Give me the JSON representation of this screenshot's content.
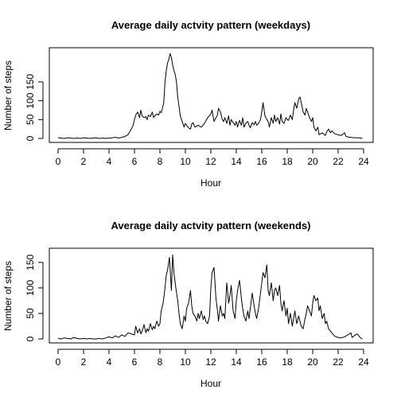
{
  "chart_data": [
    {
      "type": "line",
      "title": "Average daily actvity pattern (weekdays)",
      "xlabel": "Hour",
      "ylabel": "Number of steps",
      "xlim": [
        0,
        24
      ],
      "ylim": [
        0,
        230
      ],
      "x_ticks": [
        0,
        2,
        4,
        6,
        8,
        10,
        12,
        14,
        16,
        18,
        20,
        22,
        24
      ],
      "y_ticks": [
        0,
        50,
        100,
        150
      ],
      "grid": false,
      "series": [
        {
          "x": [
            0,
            0.25,
            0.5,
            0.75,
            1.0,
            1.25,
            1.5,
            1.75,
            2.0,
            2.25,
            2.5,
            2.75,
            3.0,
            3.25,
            3.5,
            3.75,
            4.0,
            4.25,
            4.5,
            4.75,
            5.0,
            5.25,
            5.5,
            5.75,
            5.9,
            6.0,
            6.1,
            6.25,
            6.4,
            6.5,
            6.6,
            6.75,
            6.9,
            7.0,
            7.1,
            7.25,
            7.4,
            7.5,
            7.6,
            7.75,
            7.9,
            8.0,
            8.1,
            8.2,
            8.3,
            8.4,
            8.5,
            8.6,
            8.7,
            8.8,
            8.9,
            9.0,
            9.1,
            9.2,
            9.3,
            9.4,
            9.5,
            9.6,
            9.75,
            9.9,
            10.0,
            10.1,
            10.25,
            10.4,
            10.5,
            10.6,
            10.75,
            11.0,
            11.25,
            11.5,
            11.75,
            12.0,
            12.1,
            12.25,
            12.4,
            12.5,
            12.6,
            12.75,
            12.9,
            13.0,
            13.1,
            13.25,
            13.4,
            13.5,
            13.6,
            13.75,
            13.9,
            14.0,
            14.1,
            14.25,
            14.4,
            14.5,
            14.6,
            14.75,
            14.9,
            15.0,
            15.1,
            15.25,
            15.4,
            15.5,
            15.6,
            15.75,
            15.9,
            16.0,
            16.1,
            16.25,
            16.4,
            16.5,
            16.6,
            16.75,
            16.9,
            17.0,
            17.1,
            17.25,
            17.4,
            17.5,
            17.6,
            17.75,
            17.9,
            18.0,
            18.1,
            18.25,
            18.4,
            18.5,
            18.6,
            18.75,
            18.9,
            19.0,
            19.1,
            19.25,
            19.4,
            19.5,
            19.6,
            19.75,
            19.9,
            20.0,
            20.1,
            20.25,
            20.4,
            20.5,
            20.75,
            21.0,
            21.1,
            21.25,
            21.4,
            21.5,
            21.75,
            22.0,
            22.25,
            22.5,
            22.6,
            22.75,
            23.0,
            23.25,
            23.5,
            23.75,
            23.9
          ],
          "values": [
            2,
            1,
            0,
            2,
            1,
            0,
            1,
            0,
            2,
            1,
            0,
            1,
            2,
            0,
            1,
            0,
            1,
            2,
            3,
            1,
            3,
            5,
            10,
            25,
            35,
            50,
            62,
            70,
            55,
            75,
            60,
            55,
            58,
            50,
            62,
            58,
            70,
            55,
            60,
            65,
            62,
            72,
            68,
            80,
            95,
            150,
            180,
            200,
            210,
            225,
            215,
            195,
            180,
            170,
            150,
            110,
            85,
            60,
            45,
            30,
            40,
            35,
            28,
            25,
            38,
            42,
            30,
            35,
            30,
            40,
            55,
            65,
            75,
            45,
            55,
            60,
            80,
            70,
            50,
            45,
            55,
            40,
            60,
            35,
            50,
            42,
            35,
            45,
            30,
            48,
            35,
            55,
            30,
            40,
            45,
            35,
            28,
            42,
            36,
            45,
            35,
            40,
            50,
            70,
            95,
            60,
            50,
            45,
            30,
            55,
            40,
            62,
            45,
            55,
            38,
            65,
            45,
            40,
            55,
            50,
            48,
            62,
            50,
            75,
            95,
            80,
            105,
            110,
            95,
            70,
            62,
            80,
            70,
            55,
            45,
            55,
            30,
            20,
            30,
            10,
            15,
            8,
            18,
            25,
            15,
            20,
            12,
            10,
            8,
            15,
            6,
            4,
            3,
            2,
            2,
            1,
            0
          ]
        }
      ]
    },
    {
      "type": "line",
      "title": "Average daily actvity pattern (weekends)",
      "xlabel": "Hour",
      "ylabel": "Number of steps",
      "xlim": [
        0,
        24
      ],
      "ylim": [
        0,
        170
      ],
      "x_ticks": [
        0,
        2,
        4,
        6,
        8,
        10,
        12,
        14,
        16,
        18,
        20,
        22,
        24
      ],
      "y_ticks": [
        0,
        50,
        100,
        150
      ],
      "grid": false,
      "series": [
        {
          "x": [
            0,
            0.25,
            0.5,
            0.75,
            1.0,
            1.25,
            1.5,
            1.75,
            2.0,
            2.25,
            2.5,
            2.75,
            3.0,
            3.25,
            3.5,
            3.75,
            4.0,
            4.25,
            4.5,
            4.75,
            5.0,
            5.25,
            5.5,
            5.75,
            6.0,
            6.1,
            6.25,
            6.4,
            6.5,
            6.6,
            6.75,
            6.9,
            7.0,
            7.1,
            7.25,
            7.4,
            7.5,
            7.6,
            7.75,
            7.9,
            8.0,
            8.1,
            8.25,
            8.4,
            8.5,
            8.6,
            8.75,
            8.9,
            9.0,
            9.1,
            9.25,
            9.4,
            9.5,
            9.6,
            9.75,
            9.9,
            10.0,
            10.1,
            10.25,
            10.4,
            10.5,
            10.6,
            10.75,
            10.9,
            11.0,
            11.1,
            11.25,
            11.4,
            11.5,
            11.6,
            11.75,
            11.9,
            12.0,
            12.1,
            12.25,
            12.4,
            12.5,
            12.6,
            12.75,
            12.9,
            13.0,
            13.1,
            13.25,
            13.4,
            13.5,
            13.6,
            13.75,
            13.9,
            14.0,
            14.1,
            14.25,
            14.4,
            14.5,
            14.6,
            14.75,
            14.9,
            15.0,
            15.1,
            15.25,
            15.4,
            15.5,
            15.6,
            15.75,
            15.9,
            16.0,
            16.1,
            16.25,
            16.4,
            16.5,
            16.6,
            16.75,
            16.9,
            17.0,
            17.1,
            17.25,
            17.4,
            17.5,
            17.6,
            17.75,
            17.9,
            18.0,
            18.1,
            18.25,
            18.4,
            18.5,
            18.6,
            18.75,
            18.9,
            19.0,
            19.1,
            19.25,
            19.4,
            19.5,
            19.6,
            19.75,
            19.9,
            20.0,
            20.1,
            20.25,
            20.4,
            20.5,
            20.6,
            20.75,
            20.9,
            21.0,
            21.1,
            21.25,
            21.5,
            21.75,
            22.0,
            22.25,
            22.5,
            22.75,
            23.0,
            23.1,
            23.25,
            23.5,
            23.75,
            23.9
          ],
          "values": [
            1,
            0,
            2,
            1,
            0,
            3,
            1,
            0,
            1,
            0,
            1,
            0,
            0,
            1,
            0,
            2,
            4,
            2,
            6,
            3,
            8,
            5,
            12,
            10,
            8,
            25,
            12,
            20,
            10,
            15,
            28,
            12,
            20,
            15,
            30,
            18,
            25,
            20,
            35,
            25,
            30,
            55,
            70,
            100,
            125,
            135,
            160,
            95,
            165,
            130,
            100,
            75,
            50,
            30,
            20,
            45,
            35,
            60,
            70,
            95,
            65,
            50,
            45,
            35,
            50,
            40,
            55,
            38,
            45,
            35,
            30,
            45,
            100,
            130,
            140,
            80,
            60,
            35,
            65,
            45,
            50,
            40,
            110,
            70,
            85,
            105,
            55,
            40,
            75,
            95,
            115,
            80,
            60,
            45,
            35,
            55,
            40,
            60,
            90,
            65,
            50,
            40,
            60,
            90,
            110,
            130,
            120,
            145,
            95,
            85,
            110,
            75,
            95,
            100,
            85,
            105,
            70,
            55,
            75,
            45,
            60,
            30,
            50,
            25,
            40,
            55,
            30,
            45,
            35,
            25,
            20,
            40,
            50,
            65,
            55,
            45,
            70,
            85,
            75,
            80,
            55,
            65,
            40,
            50,
            30,
            35,
            20,
            12,
            5,
            3,
            2,
            4,
            8,
            12,
            3,
            6,
            10,
            2,
            0
          ]
        }
      ]
    }
  ]
}
